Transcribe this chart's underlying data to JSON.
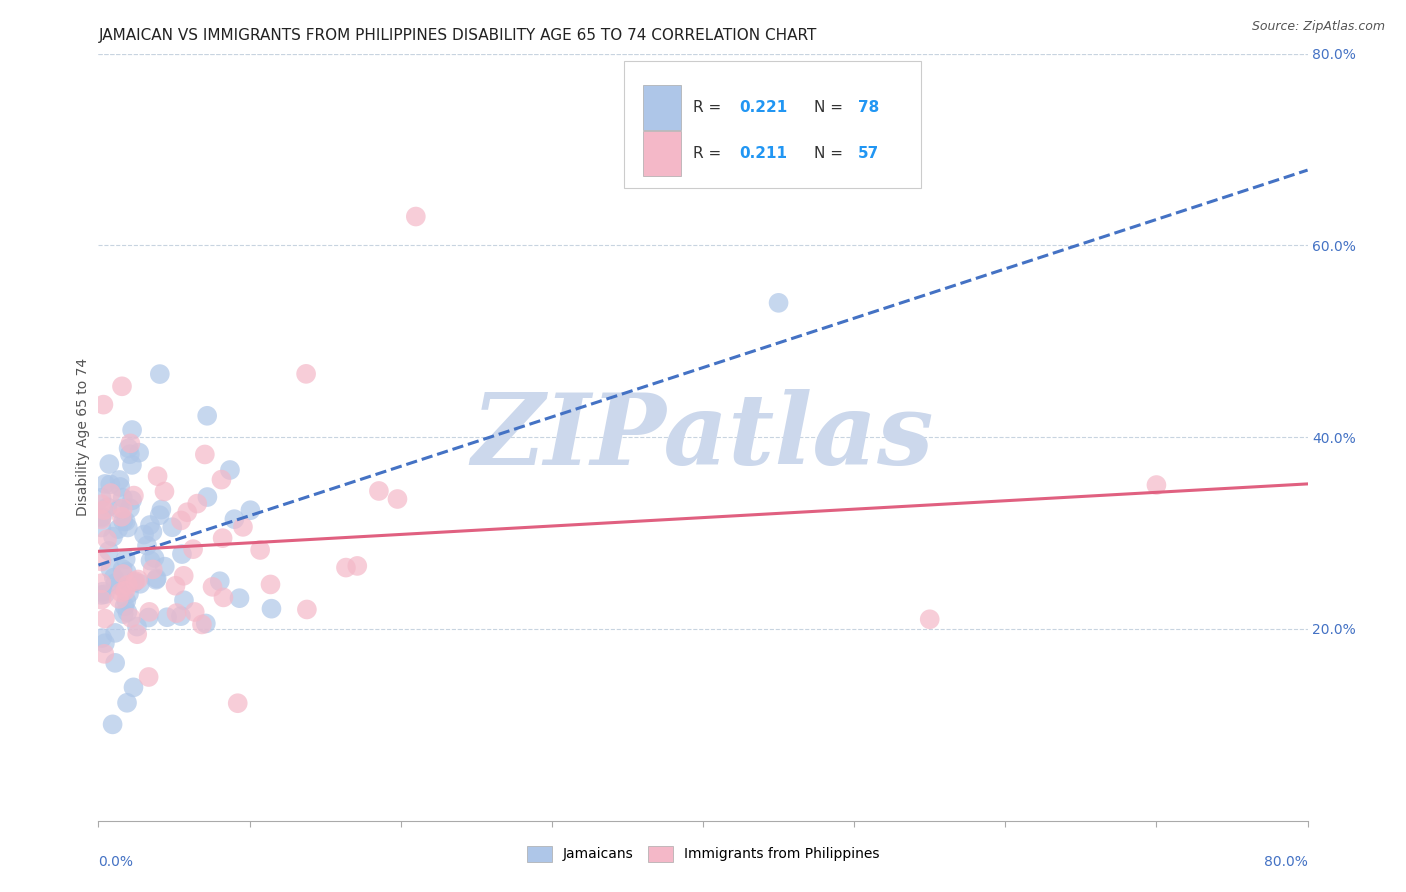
{
  "title": "JAMAICAN VS IMMIGRANTS FROM PHILIPPINES DISABILITY AGE 65 TO 74 CORRELATION CHART",
  "source": "Source: ZipAtlas.com",
  "ylabel": "Disability Age 65 to 74",
  "ylabel_right_ticks": [
    "20.0%",
    "40.0%",
    "60.0%",
    "80.0%"
  ],
  "ylabel_right_values": [
    0.2,
    0.4,
    0.6,
    0.8
  ],
  "r_jamaican": 0.221,
  "n_jamaican": 78,
  "r_philippines": 0.211,
  "n_philippines": 57,
  "scatter_color_jamaican": "#aec6e8",
  "scatter_color_philippines": "#f4b8c8",
  "line_color_jamaican": "#4472c4",
  "line_color_philippines": "#e06080",
  "watermark_text": "ZIPatlas",
  "watermark_color": "#ccd8ec",
  "background_color": "#ffffff",
  "grid_color": "#c8d4e0",
  "xmin": 0.0,
  "xmax": 0.8,
  "ymin": 0.0,
  "ymax": 0.8,
  "title_fontsize": 11,
  "axis_label_fontsize": 10,
  "tick_fontsize": 10,
  "legend_fontsize": 11
}
